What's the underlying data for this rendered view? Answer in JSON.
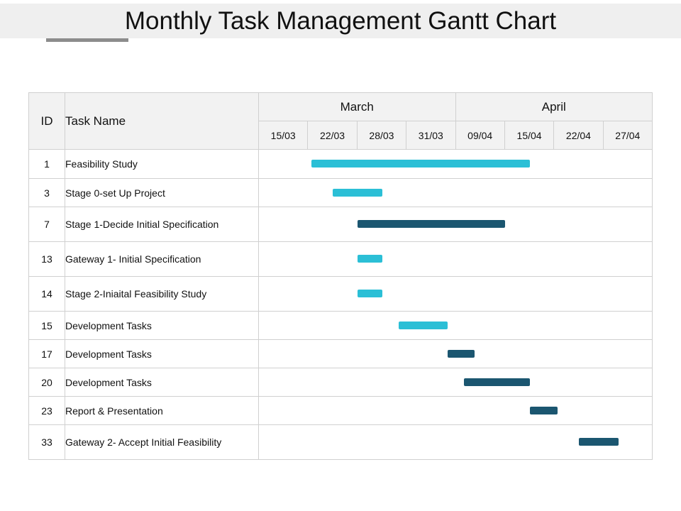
{
  "title": "Monthly Task Management Gantt Chart",
  "colors": {
    "light": "#2bbfd6",
    "dark": "#1b5670",
    "header_bg": "#f2f2f2",
    "grid": "#d0d0d0"
  },
  "chart_data": {
    "type": "gantt",
    "columns": {
      "id": "ID",
      "name": "Task Name"
    },
    "months": [
      {
        "label": "March",
        "span": 4
      },
      {
        "label": "April",
        "span": 4
      }
    ],
    "dates": [
      "15/03",
      "22/03",
      "28/03",
      "31/03",
      "09/04",
      "15/04",
      "22/04",
      "27/04"
    ],
    "tasks": [
      {
        "id": "1",
        "name": "Feasibility Study",
        "start": "2024-03-19",
        "end": "2024-04-15",
        "color": "light"
      },
      {
        "id": "3",
        "name": "Stage 0-set Up Project",
        "start": "2024-03-22",
        "end": "2024-03-28",
        "color": "light"
      },
      {
        "id": "7",
        "name": "Stage 1-Decide Initial Specification",
        "start": "2024-03-25",
        "end": "2024-04-12",
        "color": "dark"
      },
      {
        "id": "13",
        "name": "Gateway 1- Initial Specification",
        "start": "2024-03-25",
        "end": "2024-03-28",
        "color": "light"
      },
      {
        "id": "14",
        "name": "Stage 2-Iniaital Feasibility Study",
        "start": "2024-03-25",
        "end": "2024-03-28",
        "color": "light"
      },
      {
        "id": "15",
        "name": "Development Tasks",
        "start": "2024-03-29",
        "end": "2024-04-03",
        "color": "light"
      },
      {
        "id": "17",
        "name": "Development Tasks",
        "start": "2024-04-03",
        "end": "2024-04-08",
        "color": "dark"
      },
      {
        "id": "20",
        "name": "Development Tasks",
        "start": "2024-04-06",
        "end": "2024-04-15",
        "color": "dark"
      },
      {
        "id": "23",
        "name": "Report & Presentation",
        "start": "2024-04-15",
        "end": "2024-04-19",
        "color": "dark"
      },
      {
        "id": "33",
        "name": "Gateway 2- Accept Initial Feasibility",
        "start": "2024-04-22",
        "end": "2024-04-26",
        "color": "dark"
      }
    ]
  }
}
